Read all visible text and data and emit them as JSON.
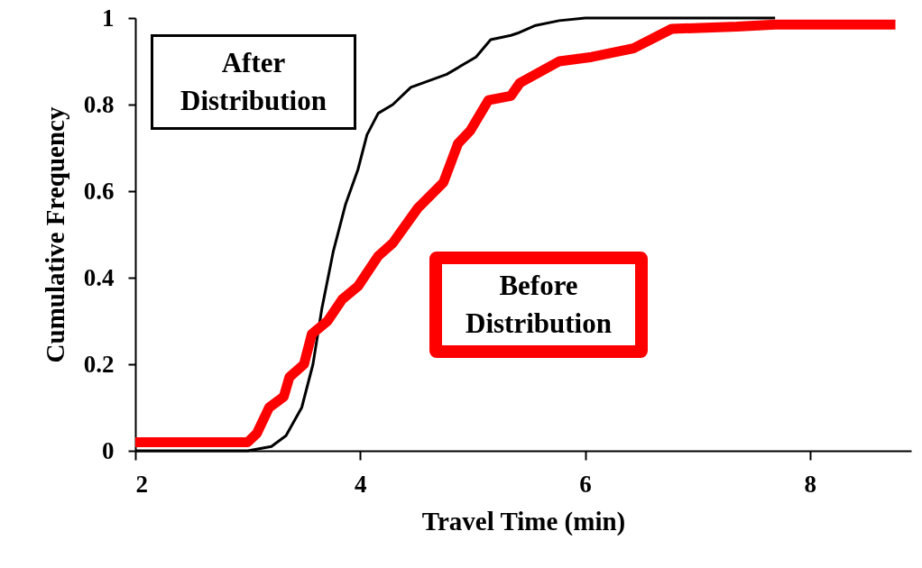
{
  "chart_data": {
    "type": "line",
    "xlabel": "Travel Time (min)",
    "ylabel": "Cumulative Frequency",
    "xlim": [
      2,
      8.9
    ],
    "xticks": [
      2,
      4,
      6,
      8
    ],
    "ylim": [
      0,
      1
    ],
    "yticks": [
      0,
      0.2,
      0.4,
      0.6,
      0.8,
      1
    ],
    "grid": false,
    "legend": false,
    "marker": "none",
    "line_style": "solid",
    "series": [
      {
        "name": "After Distribution",
        "color": "#000000",
        "x": [
          2,
          3.0,
          3.21,
          3.34,
          3.48,
          3.58,
          3.66,
          3.76,
          3.87,
          3.98,
          4.06,
          4.16,
          4.29,
          4.45,
          4.77,
          5.03,
          5.16,
          5.34,
          5.4,
          5.56,
          5.77,
          6.0,
          7.69
        ],
        "values": [
          0,
          0,
          0.01,
          0.035,
          0.1,
          0.2,
          0.33,
          0.46,
          0.57,
          0.65,
          0.73,
          0.78,
          0.8,
          0.84,
          0.87,
          0.91,
          0.95,
          0.96,
          0.965,
          0.983,
          0.994,
          1,
          1
        ]
      },
      {
        "name": "Before Distribution",
        "color": "#ff0000",
        "x": [
          2,
          3.0,
          3.08,
          3.19,
          3.32,
          3.37,
          3.5,
          3.57,
          3.71,
          3.84,
          3.98,
          4.16,
          4.29,
          4.51,
          4.74,
          4.87,
          4.98,
          5.14,
          5.34,
          5.42,
          5.77,
          6.06,
          6.43,
          6.77,
          7.35,
          7.69,
          8.76
        ],
        "values": [
          0.02,
          0.02,
          0.04,
          0.1,
          0.125,
          0.17,
          0.2,
          0.27,
          0.3,
          0.35,
          0.38,
          0.45,
          0.48,
          0.56,
          0.62,
          0.71,
          0.74,
          0.81,
          0.82,
          0.85,
          0.9,
          0.91,
          0.93,
          0.975,
          0.98,
          0.985,
          0.985
        ]
      }
    ]
  }
}
